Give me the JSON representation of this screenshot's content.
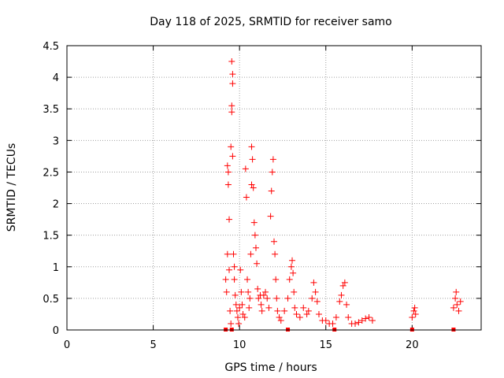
{
  "chart_data": {
    "type": "scatter",
    "title": "Day 118 of 2025, SRMTID for receiver samo",
    "xlabel": "GPS time / hours",
    "ylabel": "SRMTID / TECUs",
    "xlim": [
      0,
      24
    ],
    "ylim": [
      0,
      4.5
    ],
    "x_ticks": [
      0,
      5,
      10,
      15,
      20
    ],
    "x_tick_labels": [
      "0",
      "5",
      "10",
      "15",
      "20"
    ],
    "y_ticks": [
      0,
      0.5,
      1,
      1.5,
      2,
      2.5,
      3,
      3.5,
      4,
      4.5
    ],
    "y_tick_labels": [
      "0",
      "0.5",
      "1",
      "1.5",
      "2",
      "2.5",
      "3",
      "3.5",
      "4",
      "4.5"
    ],
    "grid": true,
    "series": [
      {
        "name": "SRMTID",
        "marker": "plus",
        "color": "#ff0000",
        "points": [
          [
            9.2,
            0.8
          ],
          [
            9.25,
            0.6
          ],
          [
            9.3,
            1.2
          ],
          [
            9.3,
            2.6
          ],
          [
            9.35,
            2.5
          ],
          [
            9.35,
            2.3
          ],
          [
            9.4,
            1.75
          ],
          [
            9.4,
            0.95
          ],
          [
            9.45,
            0.3
          ],
          [
            9.5,
            0.1
          ],
          [
            9.5,
            2.9
          ],
          [
            9.55,
            4.25
          ],
          [
            9.6,
            4.05
          ],
          [
            9.6,
            3.9
          ],
          [
            9.55,
            3.55
          ],
          [
            9.55,
            3.45
          ],
          [
            9.6,
            2.75
          ],
          [
            9.65,
            1.2
          ],
          [
            9.7,
            1.0
          ],
          [
            9.7,
            0.8
          ],
          [
            9.75,
            0.55
          ],
          [
            9.8,
            0.4
          ],
          [
            9.85,
            0.3
          ],
          [
            9.9,
            0.2
          ],
          [
            9.95,
            0.1
          ],
          [
            10.0,
            0.35
          ],
          [
            10.05,
            0.95
          ],
          [
            10.1,
            0.6
          ],
          [
            10.15,
            0.4
          ],
          [
            10.2,
            0.25
          ],
          [
            10.3,
            0.2
          ],
          [
            10.35,
            2.55
          ],
          [
            10.4,
            2.1
          ],
          [
            10.45,
            0.8
          ],
          [
            10.5,
            0.6
          ],
          [
            10.55,
            0.35
          ],
          [
            10.6,
            0.5
          ],
          [
            10.65,
            1.2
          ],
          [
            10.7,
            2.3
          ],
          [
            10.7,
            2.9
          ],
          [
            10.75,
            2.7
          ],
          [
            10.8,
            2.25
          ],
          [
            10.85,
            1.7
          ],
          [
            10.9,
            1.5
          ],
          [
            10.95,
            1.3
          ],
          [
            11.0,
            1.05
          ],
          [
            11.05,
            0.65
          ],
          [
            11.1,
            0.5
          ],
          [
            11.2,
            0.55
          ],
          [
            11.25,
            0.4
          ],
          [
            11.3,
            0.3
          ],
          [
            11.4,
            0.55
          ],
          [
            11.5,
            0.6
          ],
          [
            11.6,
            0.5
          ],
          [
            11.7,
            0.35
          ],
          [
            11.8,
            1.8
          ],
          [
            11.85,
            2.2
          ],
          [
            11.9,
            2.5
          ],
          [
            11.95,
            2.7
          ],
          [
            12.0,
            1.4
          ],
          [
            12.05,
            1.2
          ],
          [
            12.1,
            0.8
          ],
          [
            12.15,
            0.5
          ],
          [
            12.2,
            0.3
          ],
          [
            12.3,
            0.2
          ],
          [
            12.4,
            0.15
          ],
          [
            12.6,
            0.3
          ],
          [
            12.8,
            0.5
          ],
          [
            12.9,
            0.8
          ],
          [
            13.0,
            1.0
          ],
          [
            13.05,
            1.1
          ],
          [
            13.1,
            0.9
          ],
          [
            13.15,
            0.6
          ],
          [
            13.2,
            0.35
          ],
          [
            13.3,
            0.25
          ],
          [
            13.5,
            0.2
          ],
          [
            13.7,
            0.35
          ],
          [
            13.9,
            0.25
          ],
          [
            14.0,
            0.3
          ],
          [
            14.2,
            0.5
          ],
          [
            14.3,
            0.75
          ],
          [
            14.4,
            0.6
          ],
          [
            14.5,
            0.45
          ],
          [
            14.6,
            0.25
          ],
          [
            14.8,
            0.15
          ],
          [
            15.0,
            0.15
          ],
          [
            15.2,
            0.1
          ],
          [
            15.4,
            0.1
          ],
          [
            15.6,
            0.2
          ],
          [
            15.8,
            0.45
          ],
          [
            15.9,
            0.55
          ],
          [
            16.0,
            0.7
          ],
          [
            16.1,
            0.75
          ],
          [
            16.2,
            0.4
          ],
          [
            16.3,
            0.2
          ],
          [
            16.5,
            0.1
          ],
          [
            16.7,
            0.1
          ],
          [
            16.9,
            0.12
          ],
          [
            17.1,
            0.15
          ],
          [
            17.3,
            0.18
          ],
          [
            17.5,
            0.2
          ],
          [
            17.7,
            0.15
          ],
          [
            20.0,
            0.2
          ],
          [
            20.1,
            0.3
          ],
          [
            20.15,
            0.35
          ],
          [
            20.2,
            0.25
          ],
          [
            22.4,
            0.35
          ],
          [
            22.5,
            0.5
          ],
          [
            22.55,
            0.6
          ],
          [
            22.6,
            0.4
          ],
          [
            22.7,
            0.3
          ],
          [
            22.8,
            0.45
          ]
        ]
      }
    ],
    "zero_markers": [
      9.2,
      9.55,
      12.8,
      15.5,
      20.0,
      22.4
    ]
  }
}
